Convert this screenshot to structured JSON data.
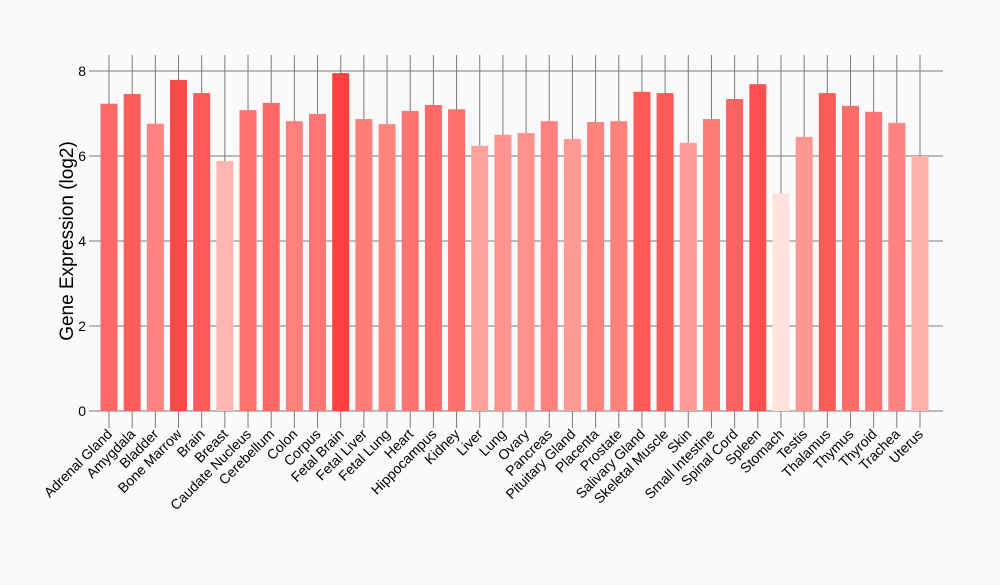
{
  "chart_data": {
    "type": "bar",
    "title": "",
    "xlabel": "",
    "ylabel": "Gene Expression (log2)",
    "ylim": [
      0,
      8.35
    ],
    "yticks": [
      "0",
      "2",
      "4",
      "6",
      "8"
    ],
    "grid": true,
    "color_low": "#ffe2da",
    "color_high": "#ff4040",
    "categories": [
      "Adrenal Gland",
      "Amygdala",
      "Bladder",
      "Bone Marrow",
      "Brain",
      "Breast",
      "Caudate Nucleus",
      "Cerebellum",
      "Colon",
      "Corpus",
      "Fetal Brain",
      "Fetal Liver",
      "Fetal Lung",
      "Heart",
      "Hippocampus",
      "Kidney",
      "Liver",
      "Lung",
      "Ovary",
      "Pancreas",
      "Pituitary Gland",
      "Placenta",
      "Prostate",
      "Salivary Gland",
      "Skeletal Muscle",
      "Skin",
      "Small Intestine",
      "Spinal Cord",
      "Spleen",
      "Stomach",
      "Testis",
      "Thalamus",
      "Thymus",
      "Thyroid",
      "Trachea",
      "Uterus"
    ],
    "values": [
      7.23,
      7.46,
      6.76,
      7.79,
      7.48,
      5.88,
      7.08,
      7.25,
      6.82,
      6.99,
      7.95,
      6.87,
      6.75,
      7.06,
      7.2,
      7.1,
      6.24,
      6.5,
      6.54,
      6.82,
      6.4,
      6.8,
      6.82,
      7.51,
      7.48,
      6.31,
      6.87,
      7.34,
      7.69,
      5.12,
      6.45,
      7.48,
      7.18,
      7.04,
      6.78,
      6.0
    ]
  }
}
